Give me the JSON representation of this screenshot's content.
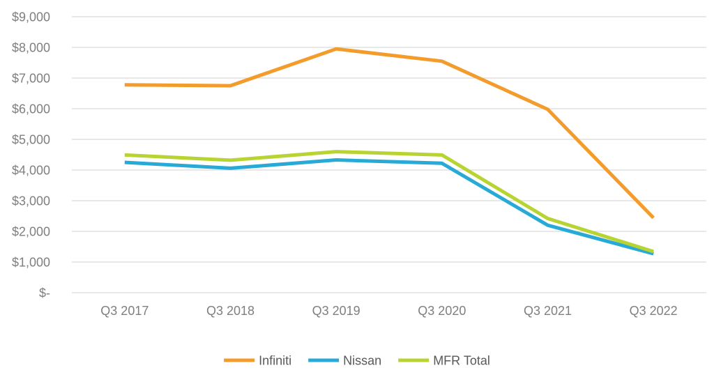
{
  "chart_data": {
    "type": "line",
    "title": "",
    "xlabel": "",
    "ylabel": "",
    "categories": [
      "Q3 2017",
      "Q3 2018",
      "Q3 2019",
      "Q3 2020",
      "Q3 2021",
      "Q3 2022"
    ],
    "ylim": [
      0,
      9000
    ],
    "yticks": [
      0,
      1000,
      2000,
      3000,
      4000,
      5000,
      6000,
      7000,
      8000,
      9000
    ],
    "ytick_labels": [
      "$-",
      "$1,000",
      "$2,000",
      "$3,000",
      "$4,000",
      "$5,000",
      "$6,000",
      "$7,000",
      "$8,000",
      "$9,000"
    ],
    "grid": true,
    "legend_position": "bottom",
    "series": [
      {
        "name": "Infiniti",
        "color": "#f39c2b",
        "values": [
          6780,
          6750,
          7950,
          7550,
          5980,
          2440
        ]
      },
      {
        "name": "Nissan",
        "color": "#29a9d6",
        "values": [
          4250,
          4060,
          4330,
          4220,
          2200,
          1270
        ]
      },
      {
        "name": "MFR Total",
        "color": "#b8d433",
        "values": [
          4490,
          4320,
          4600,
          4490,
          2420,
          1340
        ]
      }
    ]
  }
}
